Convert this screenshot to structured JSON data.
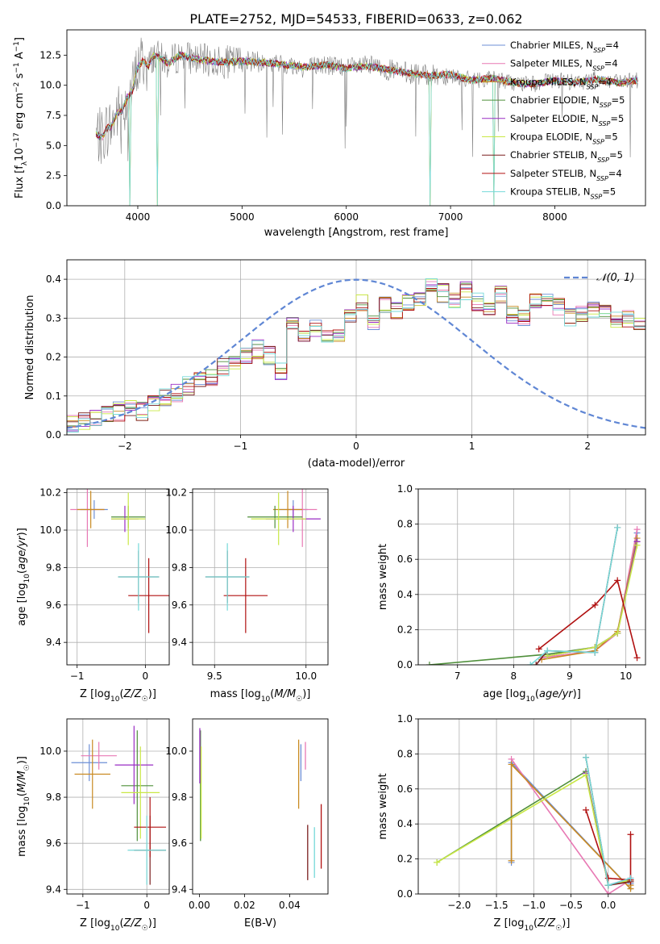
{
  "page_title": "PLATE=2752, MJD=54533, FIBERID=0633, z=0.062",
  "colors": {
    "chabrier_miles": "#6d8fd6",
    "salpeter_miles": "#e879b4",
    "kroupa_miles": "#c98a22",
    "chabrier_elodie": "#4f8f3a",
    "salpeter_elodie": "#9a2dc4",
    "kroupa_elodie": "#c9e845",
    "chabrier_stelib": "#7a1f1f",
    "salpeter_stelib": "#b01010",
    "kroupa_stelib": "#76d9d9",
    "data": "#808080",
    "normal": "#5f86d4",
    "grid": "#b0b0b0"
  },
  "series_labels": [
    {
      "pre": "Chabrier MILES, N",
      "sub": "SSP",
      "post": "=4",
      "color_key": "chabrier_miles"
    },
    {
      "pre": "Salpeter MILES, N",
      "sub": "SSP",
      "post": "=4",
      "color_key": "salpeter_miles"
    },
    {
      "pre": "Kroupa MILES, N",
      "sub": "SSP",
      "post": "=4",
      "color_key": "kroupa_miles"
    },
    {
      "pre": "Chabrier ELODIE, N",
      "sub": "SSP",
      "post": "=5",
      "color_key": "chabrier_elodie"
    },
    {
      "pre": "Salpeter ELODIE, N",
      "sub": "SSP",
      "post": "=5",
      "color_key": "salpeter_elodie"
    },
    {
      "pre": "Kroupa ELODIE, N",
      "sub": "SSP",
      "post": "=5",
      "color_key": "kroupa_elodie"
    },
    {
      "pre": "Chabrier STELIB, N",
      "sub": "SSP",
      "post": "=5",
      "color_key": "chabrier_stelib"
    },
    {
      "pre": "Salpeter STELIB, N",
      "sub": "SSP",
      "post": "=4",
      "color_key": "salpeter_stelib"
    },
    {
      "pre": "Kroupa STELIB, N",
      "sub": "SSP",
      "post": "=5",
      "color_key": "kroupa_stelib"
    }
  ],
  "chart_data": [
    {
      "type": "line",
      "title": "PLATE=2752, MJD=54533, FIBERID=0633, z=0.062",
      "xlabel": "wavelength [Angstrom, rest frame]",
      "ylabel": "Flux [fλ 10⁻¹⁷ erg cm⁻² s⁻¹ A⁻¹]",
      "xlim": [
        3320,
        8870
      ],
      "ylim": [
        0,
        14.6
      ],
      "xticks": [
        4000,
        5000,
        6000,
        7000,
        8000
      ],
      "yticks": [
        0.0,
        2.5,
        5.0,
        7.5,
        10.0,
        12.5
      ],
      "grid": false,
      "legend": "top-right",
      "model_continuum": {
        "x": [
          3600,
          3650,
          3700,
          3750,
          3800,
          3850,
          3900,
          3950,
          4000,
          4050,
          4100,
          4150,
          4200,
          4300,
          4400,
          4500,
          4600,
          4800,
          5000,
          5200,
          5400,
          5600,
          5800,
          6000,
          6200,
          6400,
          6600,
          6800,
          7000,
          7200,
          7400,
          7600,
          7800,
          8000,
          8200,
          8400,
          8600,
          8800
        ],
        "y": [
          6.0,
          5.6,
          6.4,
          6.6,
          7.7,
          7.9,
          9.0,
          9.6,
          11.5,
          12.1,
          11.5,
          12.5,
          12.3,
          11.8,
          12.5,
          12.3,
          12.1,
          11.9,
          12.0,
          11.9,
          11.7,
          11.5,
          11.7,
          11.4,
          11.6,
          11.3,
          11.0,
          10.8,
          10.9,
          10.4,
          10.6,
          10.2,
          10.1,
          10.4,
          10.2,
          10.5,
          10.2,
          10.4
        ]
      },
      "model_spikes": [
        {
          "x": 3920,
          "y": 0
        },
        {
          "x": 4190,
          "y": 0
        },
        {
          "x": 6800,
          "y": 0
        },
        {
          "x": 7420,
          "y": 0
        }
      ]
    },
    {
      "type": "histogram",
      "xlabel": "(data-model)/error",
      "ylabel": "Normed distribution",
      "xlim": [
        -2.5,
        2.5
      ],
      "ylim": [
        0,
        0.45
      ],
      "xticks": [
        -2,
        -1,
        0,
        1,
        2
      ],
      "yticks": [
        0.0,
        0.1,
        0.2,
        0.3,
        0.4
      ],
      "grid": true,
      "legend": "top-right",
      "normal_label": "𝒩(0, 1)",
      "bin_width": 0.1,
      "bin_start": -2.5,
      "base_values": [
        0.03,
        0.035,
        0.04,
        0.05,
        0.06,
        0.065,
        0.06,
        0.085,
        0.095,
        0.11,
        0.125,
        0.14,
        0.15,
        0.175,
        0.19,
        0.205,
        0.22,
        0.205,
        0.16,
        0.28,
        0.25,
        0.27,
        0.26,
        0.245,
        0.31,
        0.34,
        0.29,
        0.335,
        0.32,
        0.34,
        0.35,
        0.385,
        0.365,
        0.35,
        0.37,
        0.34,
        0.33,
        0.36,
        0.31,
        0.3,
        0.345,
        0.35,
        0.33,
        0.3,
        0.31,
        0.32,
        0.315,
        0.3,
        0.3,
        0.285,
        0.27,
        0.22,
        0.26,
        0.21,
        0.24,
        0.23,
        0.2,
        0.2,
        0.19,
        0.17,
        0.15,
        0.13,
        0.12,
        0.1,
        0.095,
        0.085,
        0.08,
        0.07,
        0.065,
        0.06,
        0.05,
        0.045,
        0.04
      ]
    },
    {
      "type": "errorbar",
      "xlabel": "Z [log10(Z/Z☉)]",
      "ylabel": "age [log10(age/yr)]",
      "xlim": [
        -1.15,
        0.35
      ],
      "ylim": [
        9.28,
        10.22
      ],
      "xticks": [
        -1,
        0
      ],
      "yticks": [
        9.4,
        9.6,
        9.8,
        10.0,
        10.2
      ],
      "grid": true,
      "points": [
        {
          "s": "chabrier_miles",
          "x": -0.75,
          "xerr": 0.2,
          "y": 10.11,
          "yerr": 0.05
        },
        {
          "s": "salpeter_miles",
          "x": -0.85,
          "xerr": 0.25,
          "y": 10.11,
          "yerr": 0.2
        },
        {
          "s": "kroupa_miles",
          "x": -0.8,
          "xerr": 0.2,
          "y": 10.11,
          "yerr": 0.1
        },
        {
          "s": "chabrier_elodie",
          "x": -0.25,
          "xerr": 0.25,
          "y": 10.07,
          "yerr": 0.06
        },
        {
          "s": "salpeter_elodie",
          "x": -0.3,
          "xerr": 0.2,
          "y": 10.06,
          "yerr": 0.07
        },
        {
          "s": "kroupa_elodie",
          "x": -0.25,
          "xerr": 0.25,
          "y": 10.06,
          "yerr": 0.14
        },
        {
          "s": "chabrier_stelib",
          "x": -0.1,
          "xerr": 0.3,
          "y": 9.75,
          "yerr": 0.14
        },
        {
          "s": "salpeter_stelib",
          "x": 0.05,
          "xerr": 0.3,
          "y": 9.65,
          "yerr": 0.2
        },
        {
          "s": "kroupa_stelib",
          "x": -0.1,
          "xerr": 0.3,
          "y": 9.75,
          "yerr": 0.18
        }
      ]
    },
    {
      "type": "errorbar",
      "xlabel": "mass [log10(M/M☉)]",
      "ylabel": "",
      "xlim": [
        9.38,
        10.12
      ],
      "ylim": [
        9.28,
        10.22
      ],
      "xticks": [
        9.5,
        10.0
      ],
      "yticks": [
        9.4,
        9.6,
        9.8,
        10.0,
        10.2
      ],
      "grid": true,
      "points": [
        {
          "s": "chabrier_miles",
          "x": 9.93,
          "xerr": 0.08,
          "y": 10.11,
          "yerr": 0.05
        },
        {
          "s": "salpeter_miles",
          "x": 9.98,
          "xerr": 0.08,
          "y": 10.11,
          "yerr": 0.2
        },
        {
          "s": "kroupa_miles",
          "x": 9.9,
          "xerr": 0.08,
          "y": 10.11,
          "yerr": 0.1
        },
        {
          "s": "chabrier_elodie",
          "x": 9.83,
          "xerr": 0.15,
          "y": 10.07,
          "yerr": 0.06
        },
        {
          "s": "salpeter_elodie",
          "x": 9.93,
          "xerr": 0.15,
          "y": 10.06,
          "yerr": 0.07
        },
        {
          "s": "kroupa_elodie",
          "x": 9.85,
          "xerr": 0.15,
          "y": 10.06,
          "yerr": 0.14
        },
        {
          "s": "chabrier_stelib",
          "x": 9.57,
          "xerr": 0.12,
          "y": 9.75,
          "yerr": 0.14
        },
        {
          "s": "salpeter_stelib",
          "x": 9.67,
          "xerr": 0.12,
          "y": 9.65,
          "yerr": 0.2
        },
        {
          "s": "kroupa_stelib",
          "x": 9.57,
          "xerr": 0.12,
          "y": 9.75,
          "yerr": 0.18
        }
      ]
    },
    {
      "type": "line",
      "xlabel": "age [log10(age/yr)]",
      "ylabel": "mass weight",
      "xlim": [
        6.3,
        10.35
      ],
      "ylim": [
        0,
        1
      ],
      "xticks": [
        7,
        8,
        9,
        10
      ],
      "yticks": [
        0.0,
        0.2,
        0.4,
        0.6,
        0.8,
        1.0
      ],
      "grid": true,
      "series": [
        {
          "s": "chabrier_miles",
          "x": [
            8.6,
            9.45,
            9.85,
            10.2
          ],
          "y": [
            0.05,
            0.1,
            0.18,
            0.75
          ]
        },
        {
          "s": "salpeter_miles",
          "x": [
            8.5,
            9.45,
            9.85,
            10.2
          ],
          "y": [
            0.04,
            0.08,
            0.18,
            0.77
          ]
        },
        {
          "s": "kroupa_miles",
          "x": [
            8.5,
            9.45,
            9.85,
            10.2
          ],
          "y": [
            0.03,
            0.08,
            0.19,
            0.72
          ]
        },
        {
          "s": "chabrier_elodie",
          "x": [
            6.5,
            8.6,
            9.45,
            9.85,
            10.2
          ],
          "y": [
            0.0,
            0.06,
            0.1,
            0.18,
            0.7
          ]
        },
        {
          "s": "salpeter_elodie",
          "x": [
            8.6,
            9.45,
            9.85,
            10.2
          ],
          "y": [
            0.05,
            0.1,
            0.18,
            0.7
          ]
        },
        {
          "s": "kroupa_elodie",
          "x": [
            8.6,
            9.45,
            9.85,
            10.2
          ],
          "y": [
            0.05,
            0.1,
            0.18,
            0.68
          ]
        },
        {
          "s": "chabrier_stelib",
          "x": [
            8.4,
            8.6,
            9.45,
            9.85
          ],
          "y": [
            0.0,
            0.08,
            0.07,
            0.78
          ]
        },
        {
          "s": "salpeter_stelib",
          "x": [
            8.45,
            9.45,
            9.85,
            10.2
          ],
          "y": [
            0.09,
            0.34,
            0.48,
            0.04
          ]
        },
        {
          "s": "kroupa_stelib",
          "x": [
            8.3,
            8.6,
            9.45,
            9.85
          ],
          "y": [
            0.0,
            0.08,
            0.07,
            0.78
          ]
        }
      ]
    },
    {
      "type": "errorbar",
      "xlabel": "Z [log10(Z/Z☉)]",
      "ylabel": "mass [log10(M/M☉)]",
      "xlim": [
        -1.25,
        0.35
      ],
      "ylim": [
        9.38,
        10.14
      ],
      "xticks": [
        -1,
        0
      ],
      "yticks": [
        9.4,
        9.6,
        9.8,
        10.0
      ],
      "grid": true,
      "points": [
        {
          "s": "chabrier_miles",
          "x": -0.9,
          "xerr": 0.28,
          "y": 9.95,
          "yerr": 0.08
        },
        {
          "s": "salpeter_miles",
          "x": -0.75,
          "xerr": 0.28,
          "y": 9.98,
          "yerr": 0.06
        },
        {
          "s": "kroupa_miles",
          "x": -0.85,
          "xerr": 0.28,
          "y": 9.9,
          "yerr": 0.15
        },
        {
          "s": "chabrier_elodie",
          "x": -0.15,
          "xerr": 0.25,
          "y": 9.85,
          "yerr": 0.24
        },
        {
          "s": "salpeter_elodie",
          "x": -0.2,
          "xerr": 0.3,
          "y": 9.94,
          "yerr": 0.17
        },
        {
          "s": "kroupa_elodie",
          "x": -0.1,
          "xerr": 0.3,
          "y": 9.82,
          "yerr": 0.2
        },
        {
          "s": "chabrier_stelib",
          "x": 0.05,
          "xerr": 0.25,
          "y": 9.57,
          "yerr": 0.15
        },
        {
          "s": "salpeter_stelib",
          "x": 0.05,
          "xerr": 0.25,
          "y": 9.67,
          "yerr": 0.13
        },
        {
          "s": "kroupa_stelib",
          "x": 0.0,
          "xerr": 0.3,
          "y": 9.57,
          "yerr": 0.15
        }
      ]
    },
    {
      "type": "errorbar",
      "xlabel": "E(B-V)",
      "ylabel": "",
      "xlim": [
        -0.003,
        0.057
      ],
      "ylim": [
        9.38,
        10.14
      ],
      "xticks": [
        0.0,
        0.02,
        0.04
      ],
      "yticks": [
        9.4,
        9.6,
        9.8,
        10.0
      ],
      "grid": false,
      "points": [
        {
          "s": "chabrier_miles",
          "x": 0.045,
          "xerr": 0.0,
          "y": 9.95,
          "yerr": 0.08
        },
        {
          "s": "salpeter_miles",
          "x": 0.047,
          "xerr": 0.0,
          "y": 9.98,
          "yerr": 0.06
        },
        {
          "s": "kroupa_miles",
          "x": 0.044,
          "xerr": 0.0,
          "y": 9.9,
          "yerr": 0.15
        },
        {
          "s": "chabrier_elodie",
          "x": 0.0005,
          "xerr": 0.0,
          "y": 9.85,
          "yerr": 0.24
        },
        {
          "s": "salpeter_elodie",
          "x": 0.0002,
          "xerr": 0.0,
          "y": 9.98,
          "yerr": 0.12
        },
        {
          "s": "kroupa_elodie",
          "x": 0.0008,
          "xerr": 0.0,
          "y": 9.82,
          "yerr": 0.2
        },
        {
          "s": "chabrier_stelib",
          "x": 0.048,
          "xerr": 0.0,
          "y": 9.56,
          "yerr": 0.12
        },
        {
          "s": "salpeter_stelib",
          "x": 0.054,
          "xerr": 0.0,
          "y": 9.63,
          "yerr": 0.14
        },
        {
          "s": "kroupa_stelib",
          "x": 0.051,
          "xerr": 0.0,
          "y": 9.56,
          "yerr": 0.11
        }
      ]
    },
    {
      "type": "line",
      "xlabel": "Z [log10(Z/Z☉)]",
      "ylabel": "mass weight",
      "xlim": [
        -2.55,
        0.5
      ],
      "ylim": [
        0,
        1
      ],
      "xticks": [
        -2.0,
        -1.5,
        -1.0,
        -0.5,
        0.0
      ],
      "yticks": [
        0.0,
        0.2,
        0.4,
        0.6,
        0.8,
        1.0
      ],
      "grid": true,
      "series": [
        {
          "s": "chabrier_miles",
          "x": [
            -1.3,
            -1.3,
            0.3,
            0.3
          ],
          "y": [
            0.18,
            0.75,
            0.03,
            0.06
          ]
        },
        {
          "s": "salpeter_miles",
          "x": [
            -1.3,
            0.0,
            0.3
          ],
          "y": [
            0.77,
            0.0,
            0.08
          ]
        },
        {
          "s": "kroupa_miles",
          "x": [
            -1.3,
            -1.3,
            0.3,
            0.3
          ],
          "y": [
            0.19,
            0.74,
            0.03,
            0.05
          ]
        },
        {
          "s": "chabrier_elodie",
          "x": [
            -2.3,
            -0.3,
            0.0,
            0.3
          ],
          "y": [
            0.18,
            0.7,
            0.05,
            0.08
          ]
        },
        {
          "s": "salpeter_elodie",
          "x": [
            -0.3,
            0.0,
            0.3
          ],
          "y": [
            0.69,
            0.05,
            0.09
          ]
        },
        {
          "s": "kroupa_elodie",
          "x": [
            -2.3,
            -0.3,
            0.0,
            0.3
          ],
          "y": [
            0.18,
            0.68,
            0.05,
            0.08
          ]
        },
        {
          "s": "chabrier_stelib",
          "x": [
            -0.3,
            0.0,
            0.3
          ],
          "y": [
            0.78,
            0.05,
            0.07
          ]
        },
        {
          "s": "salpeter_stelib",
          "x": [
            -0.3,
            0.0,
            0.3,
            0.3
          ],
          "y": [
            0.48,
            0.09,
            0.08,
            0.34
          ]
        },
        {
          "s": "kroupa_stelib",
          "x": [
            -0.3,
            0.0,
            0.3
          ],
          "y": [
            0.78,
            0.05,
            0.09
          ]
        }
      ]
    }
  ]
}
